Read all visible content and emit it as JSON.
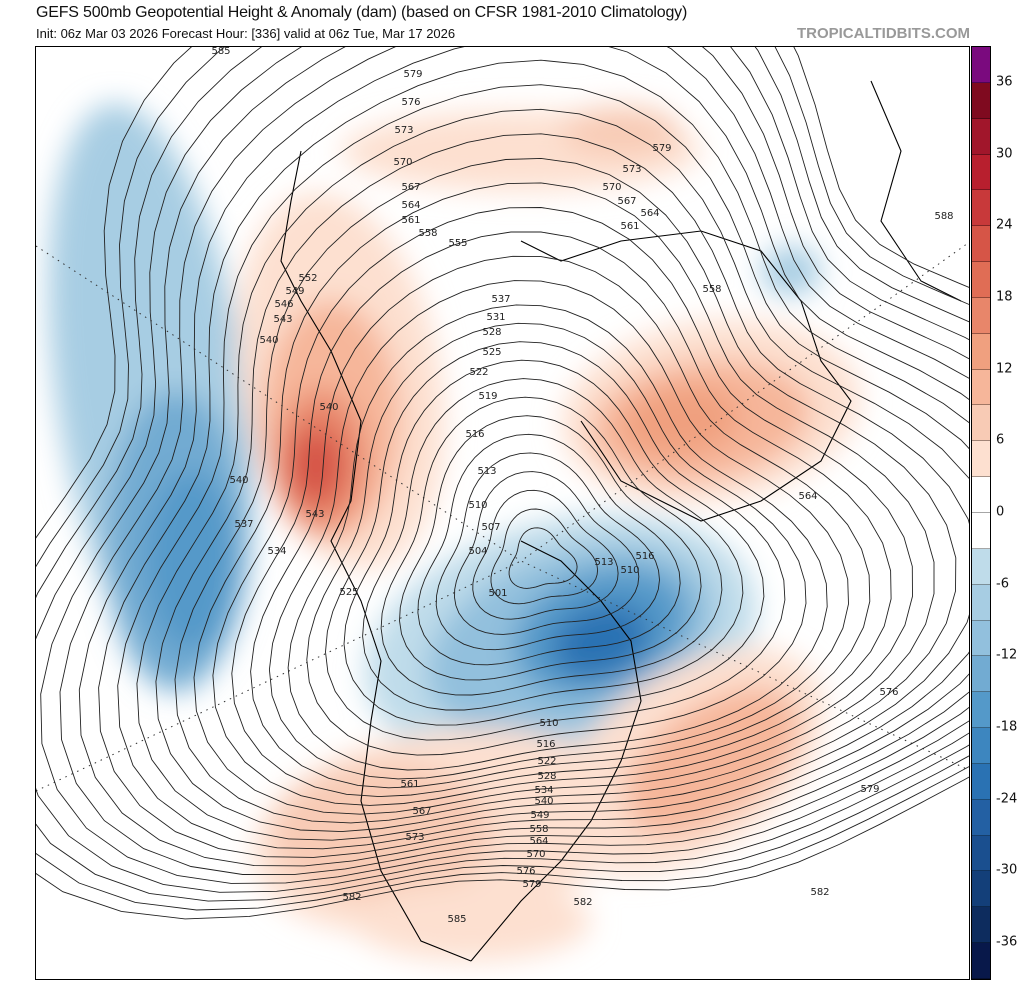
{
  "header": {
    "title": "GEFS 500mb Geopotential Height & Anomaly (dam) (based on CFSR 1981-2010 Climatology)",
    "subtitle": "Init: 06z Mar 03 2026   Forecast Hour: [336]   valid at 06z Tue, Mar 17 2026",
    "brand": "TROPICALTIDBITS.COM"
  },
  "colorbar": {
    "ticks": [
      "36",
      "30",
      "24",
      "18",
      "12",
      "6",
      "0",
      "-6",
      "-12",
      "-18",
      "-24",
      "-30",
      "-36"
    ],
    "colors": [
      "#7a0a7e",
      "#7f0a1f",
      "#a1162b",
      "#b81f2e",
      "#c8393a",
      "#d65547",
      "#e06d55",
      "#e8866a",
      "#f0a07f",
      "#f6b69a",
      "#f8cbb5",
      "#fde0d0",
      "#ffffff",
      "#ffffff",
      "#bfdcea",
      "#a7cde3",
      "#92c0dd",
      "#72abd2",
      "#5499c9",
      "#3d86bf",
      "#2a72b3",
      "#2360a3",
      "#1a4f8f",
      "#133f79",
      "#0d2c5e",
      "#08184a"
    ]
  },
  "contour_labels": [
    "585",
    "579",
    "576",
    "573",
    "570",
    "567",
    "564",
    "561",
    "558",
    "555",
    "552",
    "549",
    "546",
    "543",
    "540",
    "537",
    "531",
    "528",
    "525",
    "522",
    "519",
    "516",
    "513",
    "510",
    "507",
    "504",
    "501",
    "540",
    "540",
    "543",
    "537",
    "534",
    "525",
    "579",
    "573",
    "570",
    "567",
    "564",
    "561",
    "558",
    "588",
    "564",
    "516",
    "513",
    "510",
    "576",
    "579",
    "582",
    "510",
    "516",
    "522",
    "528",
    "534",
    "540",
    "549",
    "558",
    "564",
    "570",
    "576",
    "579",
    "582",
    "585",
    "582",
    "573",
    "567",
    "561"
  ]
}
